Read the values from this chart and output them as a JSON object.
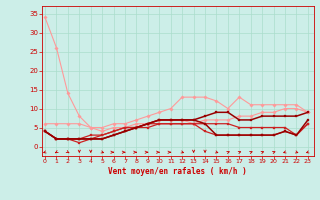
{
  "title": "",
  "xlabel": "Vent moyen/en rafales ( km/h )",
  "ylabel": "",
  "background_color": "#cceee8",
  "grid_color": "#aaddcc",
  "x_ticks": [
    0,
    1,
    2,
    3,
    4,
    5,
    6,
    7,
    8,
    9,
    10,
    11,
    12,
    13,
    14,
    15,
    16,
    17,
    18,
    19,
    20,
    21,
    22,
    23
  ],
  "y_ticks": [
    0,
    5,
    10,
    15,
    20,
    25,
    30,
    35
  ],
  "xlim": [
    -0.3,
    23.5
  ],
  "ylim": [
    -2.5,
    37
  ],
  "lines": [
    {
      "x": [
        0,
        1,
        2,
        3,
        4,
        5,
        6,
        7,
        8,
        9,
        10,
        11,
        12,
        13,
        14,
        15,
        16,
        17,
        18,
        19,
        20,
        21,
        22,
        23
      ],
      "y": [
        34,
        26,
        14,
        8,
        5,
        4,
        5,
        5,
        6,
        6,
        7,
        7,
        7,
        6,
        7,
        7,
        7,
        8,
        8,
        9,
        9,
        10,
        10,
        9
      ],
      "color": "#ff9999",
      "lw": 0.8,
      "marker": "D",
      "ms": 1.8
    },
    {
      "x": [
        0,
        1,
        2,
        3,
        4,
        5,
        6,
        7,
        8,
        9,
        10,
        11,
        12,
        13,
        14,
        15,
        16,
        17,
        18,
        19,
        20,
        21,
        22,
        23
      ],
      "y": [
        6,
        6,
        6,
        6,
        5,
        5,
        6,
        6,
        7,
        8,
        9,
        10,
        13,
        13,
        13,
        12,
        10,
        13,
        11,
        11,
        11,
        11,
        11,
        9
      ],
      "color": "#ff9999",
      "lw": 0.8,
      "marker": "D",
      "ms": 1.8
    },
    {
      "x": [
        0,
        1,
        2,
        3,
        4,
        5,
        6,
        7,
        8,
        9,
        10,
        11,
        12,
        13,
        14,
        15,
        16,
        17,
        18,
        19,
        20,
        21,
        22,
        23
      ],
      "y": [
        4,
        2,
        2,
        1,
        2,
        3,
        4,
        5,
        5,
        5,
        6,
        6,
        6,
        6,
        4,
        3,
        3,
        3,
        3,
        3,
        3,
        4,
        3,
        6
      ],
      "color": "#cc2222",
      "lw": 0.9,
      "marker": "s",
      "ms": 1.8
    },
    {
      "x": [
        0,
        1,
        2,
        3,
        4,
        5,
        6,
        7,
        8,
        9,
        10,
        11,
        12,
        13,
        14,
        15,
        16,
        17,
        18,
        19,
        20,
        21,
        22,
        23
      ],
      "y": [
        4,
        2,
        2,
        2,
        3,
        3,
        4,
        5,
        5,
        6,
        6,
        6,
        6,
        6,
        6,
        6,
        6,
        5,
        5,
        5,
        5,
        5,
        3,
        6
      ],
      "color": "#cc2222",
      "lw": 0.9,
      "marker": "s",
      "ms": 1.8
    },
    {
      "x": [
        0,
        1,
        2,
        3,
        4,
        5,
        6,
        7,
        8,
        9,
        10,
        11,
        12,
        13,
        14,
        15,
        16,
        17,
        18,
        19,
        20,
        21,
        22,
        23
      ],
      "y": [
        4,
        2,
        2,
        2,
        2,
        2,
        3,
        4,
        5,
        6,
        7,
        7,
        7,
        7,
        6,
        3,
        3,
        3,
        3,
        3,
        3,
        4,
        3,
        7
      ],
      "color": "#990000",
      "lw": 1.1,
      "marker": "s",
      "ms": 1.8
    },
    {
      "x": [
        0,
        1,
        2,
        3,
        4,
        5,
        6,
        7,
        8,
        9,
        10,
        11,
        12,
        13,
        14,
        15,
        16,
        17,
        18,
        19,
        20,
        21,
        22,
        23
      ],
      "y": [
        4,
        2,
        2,
        2,
        2,
        2,
        3,
        4,
        5,
        6,
        7,
        7,
        7,
        7,
        8,
        9,
        9,
        7,
        7,
        8,
        8,
        8,
        8,
        9
      ],
      "color": "#990000",
      "lw": 1.1,
      "marker": "s",
      "ms": 1.8
    }
  ],
  "arrow_directions": [
    225,
    210,
    150,
    180,
    180,
    135,
    90,
    90,
    90,
    90,
    90,
    90,
    135,
    180,
    180,
    135,
    45,
    45,
    45,
    45,
    45,
    225,
    135,
    225
  ]
}
